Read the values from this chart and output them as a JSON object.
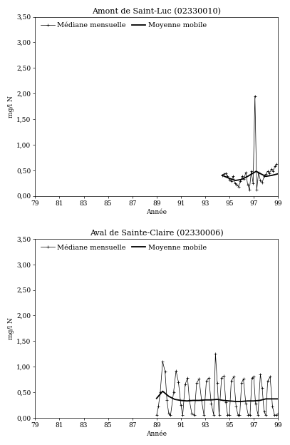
{
  "chart1": {
    "title": "Amont de Saint-Luc (02330010)",
    "ylabel": "mg/l N",
    "xlabel": "Année",
    "xlim": [
      79,
      99
    ],
    "ylim": [
      0,
      3.5
    ],
    "yticks": [
      0.0,
      0.5,
      1.0,
      1.5,
      2.0,
      2.5,
      3.0,
      3.5
    ],
    "ytick_labels": [
      "0,00",
      "0,50",
      "1,00",
      "1,50",
      "2,00",
      "2,50",
      "3,00",
      "3,50"
    ],
    "xticks": [
      79,
      81,
      83,
      85,
      87,
      89,
      91,
      93,
      95,
      97,
      99
    ],
    "xtick_labels": [
      "79",
      "81",
      "83",
      "85",
      "87",
      "89",
      "91",
      "93",
      "95",
      "97",
      "99"
    ],
    "mediane_x": [
      94.4,
      94.55,
      94.7,
      94.85,
      95.0,
      95.15,
      95.3,
      95.45,
      95.6,
      95.75,
      95.9,
      96.05,
      96.2,
      96.35,
      96.5,
      96.65,
      96.8,
      96.95,
      97.1,
      97.25,
      97.4,
      97.55,
      97.7,
      97.85,
      98.0,
      98.15,
      98.3,
      98.45,
      98.6,
      98.75,
      98.9
    ],
    "mediane_y": [
      0.4,
      0.43,
      0.44,
      0.38,
      0.32,
      0.28,
      0.38,
      0.25,
      0.22,
      0.18,
      0.28,
      0.38,
      0.33,
      0.46,
      0.22,
      0.12,
      0.48,
      0.24,
      1.95,
      0.12,
      0.46,
      0.3,
      0.26,
      0.38,
      0.42,
      0.48,
      0.44,
      0.52,
      0.48,
      0.58,
      0.62
    ],
    "mobile_x": [
      94.4,
      95.0,
      95.5,
      96.0,
      96.5,
      97.0,
      97.2,
      97.5,
      98.0,
      98.5,
      99.0
    ],
    "mobile_y": [
      0.4,
      0.34,
      0.3,
      0.32,
      0.38,
      0.45,
      0.48,
      0.44,
      0.38,
      0.4,
      0.43
    ],
    "legend_label1": "Médiane mensuelle",
    "legend_label2": "Moyenne mobile"
  },
  "chart2": {
    "title": "Aval de Sainte-Claire (02330006)",
    "ylabel": "mg/l N",
    "xlabel": "Année",
    "xlim": [
      79,
      99
    ],
    "ylim": [
      0,
      3.5
    ],
    "yticks": [
      0.0,
      0.5,
      1.0,
      1.5,
      2.0,
      2.5,
      3.0,
      3.5
    ],
    "ytick_labels": [
      "0,00",
      "0,50",
      "1,00",
      "1,50",
      "2,00",
      "2,50",
      "3,00",
      "3,50"
    ],
    "xticks": [
      79,
      81,
      83,
      85,
      87,
      89,
      91,
      93,
      95,
      97,
      99
    ],
    "xtick_labels": [
      "79",
      "81",
      "83",
      "85",
      "87",
      "89",
      "91",
      "93",
      "95",
      "97",
      "99"
    ],
    "mediane_x": [
      89.0,
      89.15,
      89.3,
      89.5,
      89.7,
      89.85,
      90.0,
      90.15,
      90.4,
      90.6,
      90.8,
      91.0,
      91.15,
      91.35,
      91.55,
      91.7,
      91.9,
      92.1,
      92.3,
      92.5,
      92.7,
      92.9,
      93.1,
      93.3,
      93.5,
      93.7,
      93.85,
      94.0,
      94.15,
      94.35,
      94.55,
      94.7,
      94.85,
      95.0,
      95.15,
      95.35,
      95.55,
      95.7,
      95.85,
      96.0,
      96.15,
      96.35,
      96.55,
      96.7,
      96.85,
      97.0,
      97.15,
      97.35,
      97.55,
      97.7,
      97.85,
      98.0,
      98.15,
      98.35,
      98.55,
      98.7,
      98.85,
      99.0
    ],
    "mediane_y": [
      0.05,
      0.22,
      0.5,
      1.1,
      0.9,
      0.35,
      0.08,
      0.05,
      0.5,
      0.92,
      0.7,
      0.25,
      0.05,
      0.65,
      0.78,
      0.35,
      0.08,
      0.05,
      0.68,
      0.76,
      0.35,
      0.05,
      0.72,
      0.78,
      0.28,
      0.06,
      1.25,
      0.68,
      0.06,
      0.78,
      0.82,
      0.3,
      0.06,
      0.05,
      0.72,
      0.8,
      0.22,
      0.06,
      0.05,
      0.68,
      0.76,
      0.28,
      0.06,
      0.05,
      0.78,
      0.8,
      0.28,
      0.06,
      0.85,
      0.58,
      0.12,
      0.05,
      0.72,
      0.8,
      0.22,
      0.06,
      0.05,
      0.08
    ],
    "mobile_x": [
      89.0,
      89.5,
      90.0,
      90.5,
      91.0,
      91.5,
      92.0,
      92.5,
      93.0,
      93.5,
      94.0,
      94.5,
      95.0,
      95.5,
      96.0,
      96.5,
      97.0,
      97.5,
      98.0,
      98.5,
      99.0
    ],
    "mobile_y": [
      0.38,
      0.52,
      0.42,
      0.36,
      0.34,
      0.33,
      0.34,
      0.34,
      0.35,
      0.35,
      0.36,
      0.34,
      0.33,
      0.32,
      0.32,
      0.33,
      0.33,
      0.34,
      0.37,
      0.37,
      0.37
    ],
    "legend_label1": "Médiane mensuelle",
    "legend_label2": "Moyenne mobile"
  },
  "bg_color": "#ffffff",
  "line_color": "#000000",
  "title_fontsize": 8,
  "label_fontsize": 6.5,
  "tick_fontsize": 6.5,
  "legend_fontsize": 7
}
